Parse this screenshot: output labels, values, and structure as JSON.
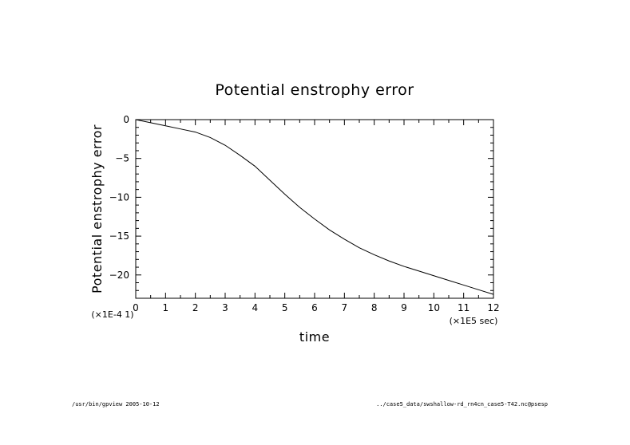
{
  "chart_data": {
    "type": "line",
    "title": "Potential enstrophy error",
    "xlabel": "time",
    "ylabel": "Potential enstrophy error",
    "x_unit_label": "(×1E5 sec)",
    "y_unit_label": "(×1E-4 1)",
    "xlim": [
      0,
      12
    ],
    "ylim": [
      -23,
      0
    ],
    "x_ticks": [
      0,
      1,
      2,
      3,
      4,
      5,
      6,
      7,
      8,
      9,
      10,
      11,
      12
    ],
    "x_tick_labels": [
      "0",
      "1",
      "2",
      "3",
      "4",
      "5",
      "6",
      "7",
      "8",
      "9",
      "10",
      "11",
      "12"
    ],
    "y_ticks": [
      0,
      -5,
      -10,
      -15,
      -20
    ],
    "y_tick_labels": [
      "0",
      "−5",
      "−10",
      "−15",
      "−20"
    ],
    "grid": false,
    "series": [
      {
        "x": [
          0,
          0.5,
          1,
          1.5,
          2,
          2.5,
          3,
          3.5,
          4,
          4.5,
          5,
          5.5,
          6,
          6.5,
          7,
          7.5,
          8,
          8.5,
          9,
          9.5,
          10,
          10.5,
          11,
          11.5,
          12
        ],
        "y": [
          0,
          -0.4,
          -0.8,
          -1.2,
          -1.6,
          -2.3,
          -3.3,
          -4.6,
          -6.0,
          -7.8,
          -9.6,
          -11.3,
          -12.8,
          -14.2,
          -15.4,
          -16.5,
          -17.4,
          -18.2,
          -18.9,
          -19.5,
          -20.1,
          -20.7,
          -21.3,
          -21.9,
          -22.5
        ],
        "color": "#000000"
      }
    ]
  },
  "footer": {
    "left": "/usr/bin/gpview  2005-10-12",
    "right": "../case5_data/swshallow-rd_rn4cn_case5-T42.nc@psesp"
  }
}
